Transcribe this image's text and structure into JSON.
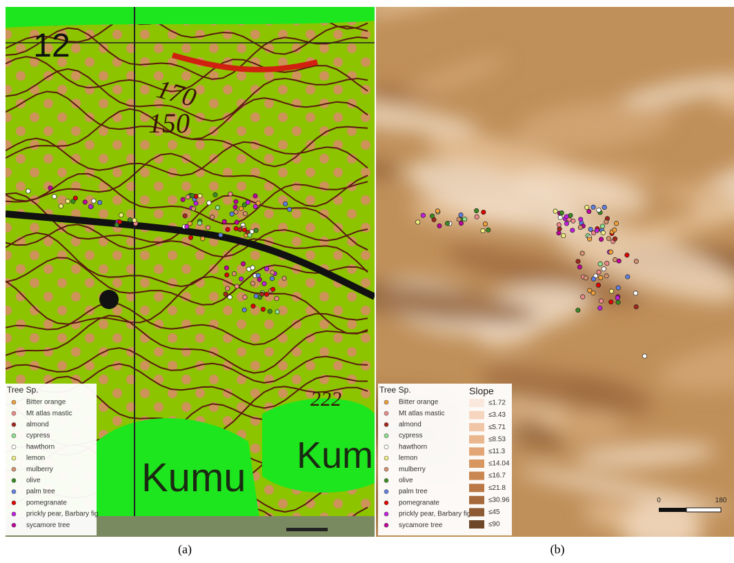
{
  "panel_a": {
    "map_labels": [
      "12",
      "170",
      "150",
      "Kumu",
      "Kum",
      "222"
    ]
  },
  "legend_title": "Tree Sp.",
  "species": [
    {
      "label": "Bitter orange",
      "color": "#f2a03a"
    },
    {
      "label": "Mt atlas mastic",
      "color": "#f08a8a"
    },
    {
      "label": "almond",
      "color": "#a3261c"
    },
    {
      "label": "cypress",
      "color": "#8fe08f"
    },
    {
      "label": "hawthorn",
      "color": "#ffffff"
    },
    {
      "label": "lemon",
      "color": "#f2ee80"
    },
    {
      "label": "mulberry",
      "color": "#d4916e"
    },
    {
      "label": "olive",
      "color": "#3a8a22"
    },
    {
      "label": "palm tree",
      "color": "#5f7fe0"
    },
    {
      "label": "pomegranate",
      "color": "#e00000"
    },
    {
      "label": "prickly pear, Barbary fig",
      "color": "#c01ee0"
    },
    {
      "label": "sycamore tree",
      "color": "#c0009a"
    }
  ],
  "slope": {
    "title": "Slope",
    "items": [
      {
        "label": "≤1.72",
        "color": "#fbe8dc"
      },
      {
        "label": "≤3.43",
        "color": "#f6d6bf"
      },
      {
        "label": "≤5.71",
        "color": "#f0c6a6"
      },
      {
        "label": "≤8.53",
        "color": "#e9b68e"
      },
      {
        "label": "≤11.3",
        "color": "#e2a676"
      },
      {
        "label": "≤14.04",
        "color": "#d89660"
      },
      {
        "label": "≤16.7",
        "color": "#ca8650"
      },
      {
        "label": "≤21.8",
        "color": "#b97846"
      },
      {
        "label": "≤30.96",
        "color": "#a5693c"
      },
      {
        "label": "≤45",
        "color": "#8d5a33"
      },
      {
        "label": "≤90",
        "color": "#6e4628"
      }
    ]
  },
  "scale": [
    "0",
    "180"
  ],
  "captions": [
    "(a)",
    "(b)"
  ]
}
